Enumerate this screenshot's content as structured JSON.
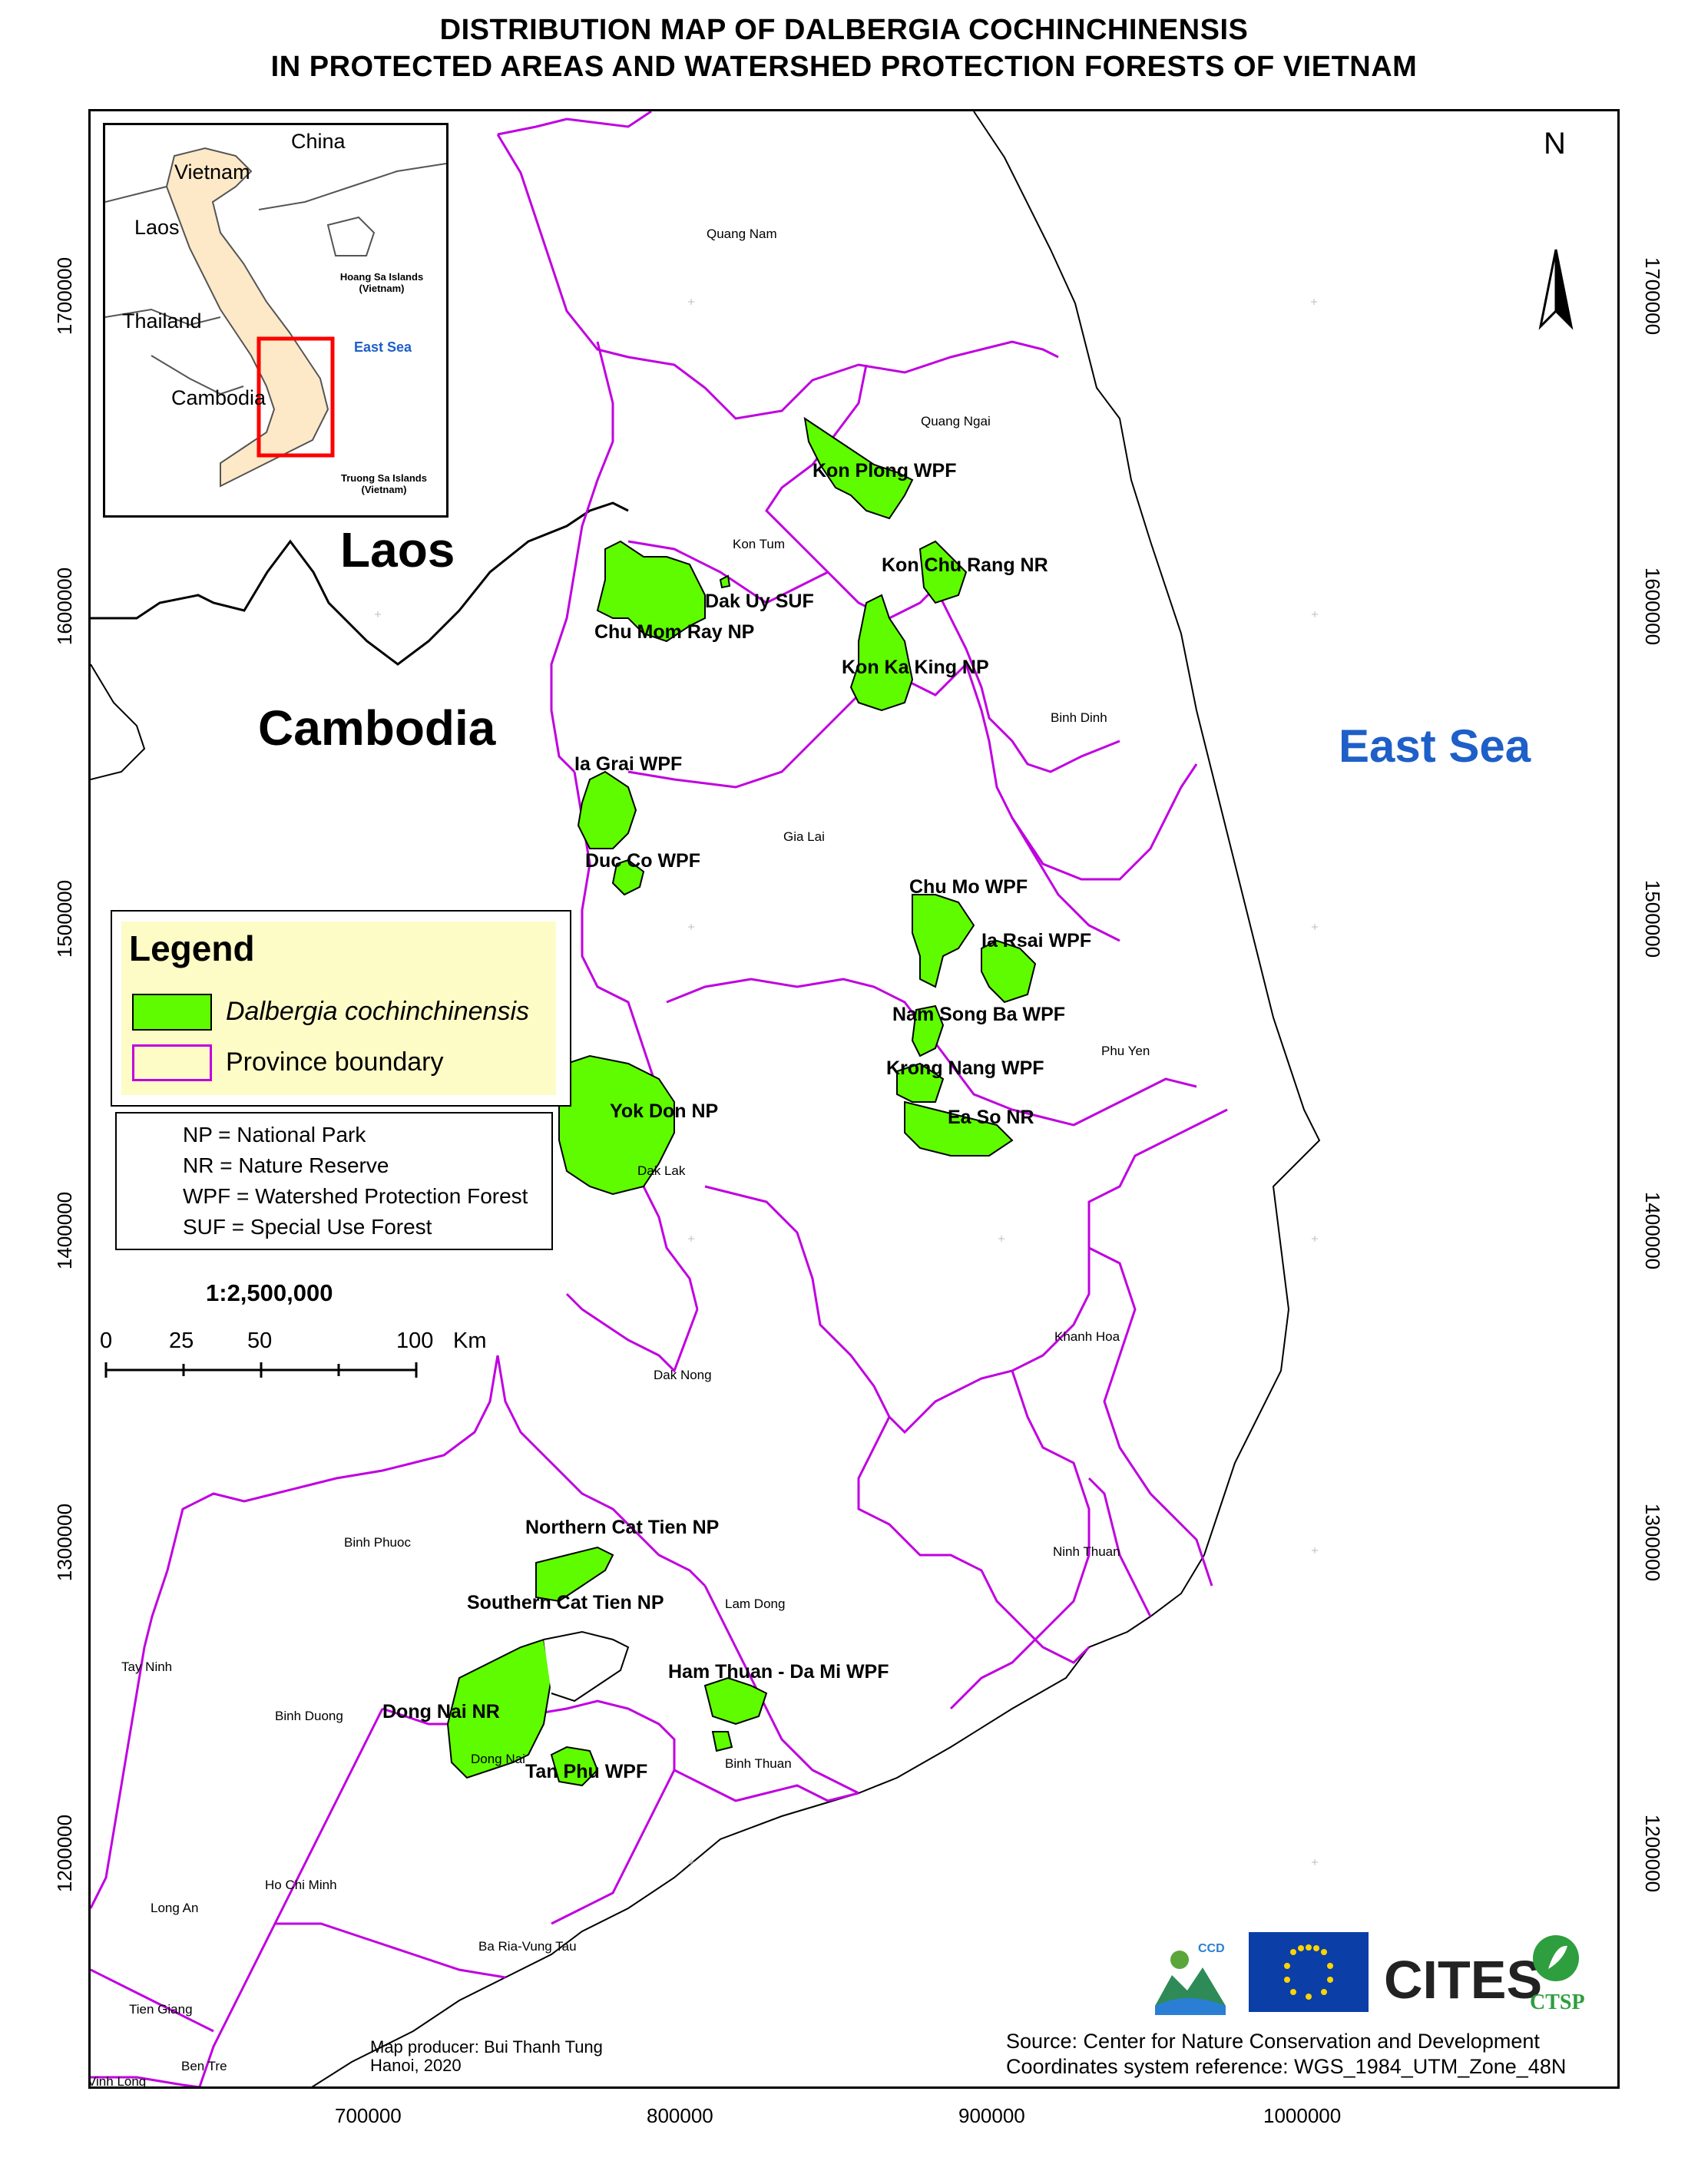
{
  "title": {
    "line1": "DISTRIBUTION MAP OF DALBERGIA COCHINCHINENSIS",
    "line2": "IN PROTECTED AREAS AND WATERSHED PROTECTION FORESTS OF VIETNAM"
  },
  "axes": {
    "x_ticks": [
      "700000",
      "800000",
      "900000",
      "1000000"
    ],
    "y_ticks": [
      "1700000",
      "1600000",
      "1500000",
      "1400000",
      "1300000",
      "1200000"
    ]
  },
  "north_arrow": {
    "label": "N"
  },
  "countries": {
    "laos": "Laos",
    "cambodia": "Cambodia"
  },
  "sea": {
    "label": "East Sea"
  },
  "provinces": [
    "Quang Nam",
    "Quang Ngai",
    "Kon Tum",
    "Binh Dinh",
    "Gia Lai",
    "Phu Yen",
    "Dak Lak",
    "Khanh Hoa",
    "Dak Nong",
    "Ninh Thuan",
    "Binh Phuoc",
    "Lam Dong",
    "Tay Ninh",
    "Binh Duong",
    "Dong Nai",
    "Binh Thuan",
    "Ho Chi Minh",
    "Long An",
    "Ba Ria-Vung Tau",
    "Tien Giang",
    "Ben Tre",
    "Vinh Long"
  ],
  "protected_areas": [
    "Kon Plong WPF",
    "Kon Chu Rang NR",
    "Dak Uy SUF",
    "Chu Mom Ray NP",
    "Kon Ka King NP",
    "Ia Grai WPF",
    "Duc Co WPF",
    "Chu Mo WPF",
    "Ia Rsai WPF",
    "Nam Song Ba WPF",
    "Krong Nang WPF",
    "Ea So NR",
    "Yok Don NP",
    "Northern Cat Tien NP",
    "Southern Cat Tien NP",
    "Ham Thuan - Da Mi WPF",
    "Dong Nai NR",
    "Tan Phu WPF"
  ],
  "inset": {
    "china": "China",
    "vietnam": "Vietnam",
    "laos": "Laos",
    "thailand": "Thailand",
    "cambodia": "Cambodia",
    "east_sea": "East Sea",
    "hoang_sa": "Hoang Sa Islands",
    "hoang_sa_sub": "(Vietnam)",
    "truong_sa": "Truong Sa Islands",
    "truong_sa_sub": "(Vietnam)"
  },
  "legend": {
    "title": "Legend",
    "species": "Dalbergia cochinchinensis",
    "boundary": "Province boundary"
  },
  "abbreviations": [
    "NP = National Park",
    "NR = Nature Reserve",
    "WPF = Watershed Protection Forest",
    "SUF = Special Use Forest"
  ],
  "scale": {
    "ratio": "1:2,500,000",
    "ticks": [
      "0",
      "25",
      "50",
      "100"
    ],
    "unit": "Km"
  },
  "credits": {
    "producer": "Map producer: Bui Thanh Tung",
    "place_date": "Hanoi, 2020"
  },
  "source": {
    "line1": "Source: Center for Nature Conservation and Development",
    "line2": "Coordinates system reference: WGS_1984_UTM_Zone_48N"
  },
  "logos": [
    "CCD",
    "CITES",
    "CTSP"
  ],
  "colors": {
    "species_fill": "#5ffc00",
    "province_line": "#c000e0",
    "inset_vietnam": "#fde9c8",
    "inset_frame": "#ff0000",
    "sea_text": "#1e5fc8",
    "legend_bg": "#fefcc6",
    "eu_blue": "#0b3fa7",
    "eu_star": "#ffd400"
  }
}
